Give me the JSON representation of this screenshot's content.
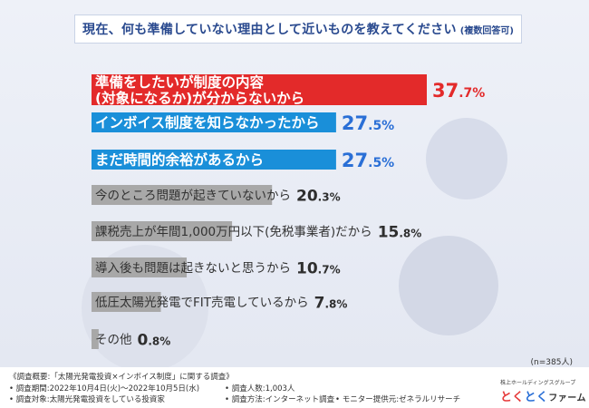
{
  "title": {
    "main": "現在、何も準備していない理由として近いものを教えてください",
    "note": "(複数回答可)"
  },
  "chart_data": {
    "type": "bar",
    "orientation": "horizontal",
    "unit": "%",
    "sample_size": "(n=385人)",
    "colors": {
      "top": "#e32a2a",
      "second": "#1a8fd9",
      "rest": "#a8a8a8",
      "value": "#2e2e2e",
      "top_value": "#e32a2a",
      "blue_value": "#2a6fd6"
    },
    "bars": [
      {
        "label": "準備をしたいが制度の内容(対象になるか)が分からないから",
        "label_lines": [
          "準備をしたいが制度の内容",
          "(対象になるか)が分からないから"
        ],
        "value": 37.7,
        "value_int": "37",
        "value_dec": ".7%",
        "style": "top"
      },
      {
        "label": "インボイス制度を知らなかったから",
        "label_lines": [
          "インボイス制度を知らなかったから"
        ],
        "value": 27.5,
        "value_int": "27",
        "value_dec": ".5%",
        "style": "second"
      },
      {
        "label": "まだ時間的余裕があるから",
        "label_lines": [
          "まだ時間的余裕があるから"
        ],
        "value": 27.5,
        "value_int": "27",
        "value_dec": ".5%",
        "style": "second"
      },
      {
        "label": "今のところ問題が起きていないから",
        "label_lines": [
          "今のところ問題が起きていないから"
        ],
        "value": 20.3,
        "value_int": "20",
        "value_dec": ".3%",
        "style": "rest"
      },
      {
        "label": "課税売上が年間1,000万円以下(免税事業者)だから",
        "label_lines": [
          "課税売上が年間1,000万円以下(免税事業者)だから"
        ],
        "value": 15.8,
        "value_int": "15",
        "value_dec": ".8%",
        "style": "rest"
      },
      {
        "label": "導入後も問題は起きないと思うから",
        "label_lines": [
          "導入後も問題は起きないと思うから"
        ],
        "value": 10.7,
        "value_int": "10",
        "value_dec": ".7%",
        "style": "rest"
      },
      {
        "label": "低圧太陽光発電でFIT売電しているから",
        "label_lines": [
          "低圧太陽光発電でFIT売電しているから"
        ],
        "value": 7.8,
        "value_int": "7",
        "value_dec": ".8%",
        "style": "rest"
      },
      {
        "label": "その他",
        "label_lines": [
          "その他"
        ],
        "value": 0.8,
        "value_int": "0",
        "value_dec": ".8%",
        "style": "rest"
      }
    ]
  },
  "footer": {
    "overview": "《調査概要:「太陽光発電投資×インボイス制度」に関する調査》",
    "period": "• 調査期間:2022年10月4日(火)〜2022年10月5日(水)",
    "target": "• 調査対象:太陽光発電投資をしている投資家",
    "count": "• 調査人数:1,003人",
    "method": "• 調査方法:インターネット調査",
    "monitor": "• モニター提供元:ゼネラルリサーチ"
  },
  "brand": {
    "group": "株上ホールディングスグループ",
    "part1": "とく",
    "part2": "とく",
    "part3": "ファーム"
  }
}
